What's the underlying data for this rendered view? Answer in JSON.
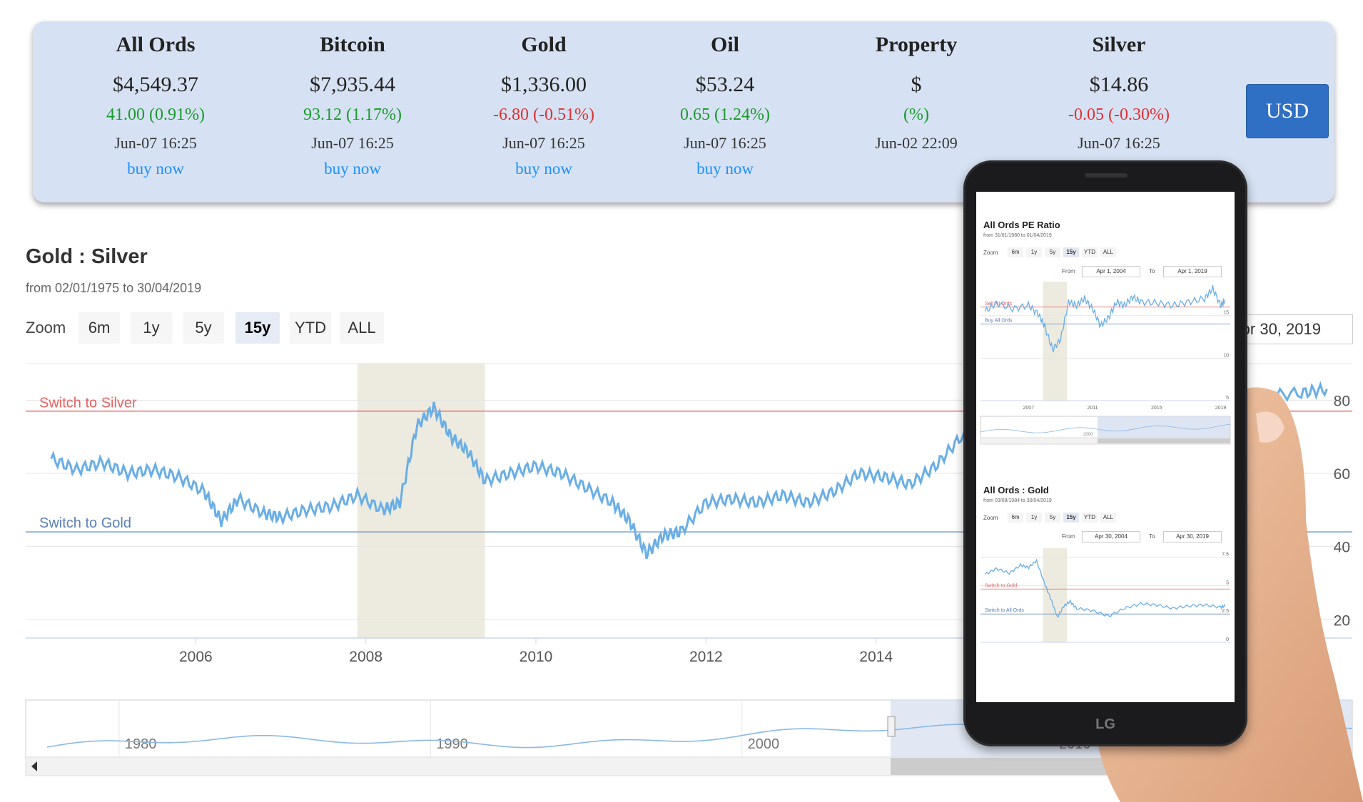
{
  "ticker": {
    "items": [
      {
        "name": "All Ords",
        "price": "$4,549.37",
        "change": "41.00 (0.91%)",
        "trend": "pos",
        "time": "Jun-07 16:25",
        "buy": "buy now"
      },
      {
        "name": "Bitcoin",
        "price": "$7,935.44",
        "change": "93.12 (1.17%)",
        "trend": "pos",
        "time": "Jun-07 16:25",
        "buy": "buy now"
      },
      {
        "name": "Gold",
        "price": "$1,336.00",
        "change": "-6.80 (-0.51%)",
        "trend": "neg",
        "time": "Jun-07 16:25",
        "buy": "buy now"
      },
      {
        "name": "Oil",
        "price": "$53.24",
        "change": "0.65 (1.24%)",
        "trend": "pos",
        "time": "Jun-07 16:25",
        "buy": "buy now"
      },
      {
        "name": "Property",
        "price": "$",
        "change": "(%)",
        "trend": "neu",
        "time": "Jun-02 22:09",
        "buy": ""
      },
      {
        "name": "Silver",
        "price": "$14.86",
        "change": "-0.05 (-0.30%)",
        "trend": "neg",
        "time": "Jun-07 16:25",
        "buy": "buy now"
      }
    ],
    "currency_button": "USD"
  },
  "main_chart": {
    "title": "Gold : Silver",
    "subtitle": "from 02/01/1975 to 30/04/2019",
    "zoom_label": "Zoom",
    "zoom_options": [
      "6m",
      "1y",
      "5y",
      "15y",
      "YTD",
      "ALL"
    ],
    "zoom_active": "15y",
    "to_date": "Apr 30, 2019",
    "switch_silver_label": "Switch to Silver",
    "switch_gold_label": "Switch to Gold",
    "line_color": "#6aaee6",
    "silver_line_color": "#e86060",
    "gold_line_color": "#7a9cc8"
  },
  "chart_data": [
    {
      "type": "line",
      "title": "Gold : Silver",
      "x_ticks": [
        "2006",
        "2008",
        "2010",
        "2012",
        "2014"
      ],
      "y_ticks": [
        "20",
        "40",
        "60",
        "80"
      ],
      "ylim": [
        20,
        90
      ],
      "thresholds": {
        "switch_to_silver": 77,
        "switch_to_gold": 44
      },
      "recession_band": {
        "from": 2007.9,
        "to": 2009.4
      },
      "series": [
        {
          "x": [
            2004.3,
            2004.6,
            2004.9,
            2005.2,
            2005.5,
            2005.8,
            2006.1,
            2006.3,
            2006.5,
            2006.8,
            2007.0,
            2007.3,
            2007.6,
            2007.9,
            2008.2,
            2008.4,
            2008.6,
            2008.8,
            2009.0,
            2009.2,
            2009.4,
            2009.7,
            2010.0,
            2010.3,
            2010.6,
            2010.9,
            2011.1,
            2011.3,
            2011.5,
            2011.7,
            2012.0,
            2012.3,
            2012.6,
            2012.9,
            2013.2,
            2013.5,
            2013.8,
            2014.1,
            2014.4,
            2014.7,
            2015.0,
            2015.5,
            2016.0,
            2016.5,
            2017.0,
            2017.5,
            2018.0,
            2018.5,
            2019.0,
            2019.3
          ],
          "y": [
            64,
            61,
            63,
            60,
            61,
            59,
            55,
            47,
            53,
            49,
            48,
            50,
            51,
            54,
            50,
            52,
            73,
            78,
            70,
            66,
            58,
            60,
            62,
            60,
            56,
            52,
            47,
            38,
            43,
            44,
            52,
            53,
            52,
            54,
            52,
            55,
            60,
            59,
            57,
            62,
            70,
            74,
            78,
            74,
            71,
            76,
            79,
            81,
            82,
            83
          ]
        }
      ]
    },
    {
      "type": "line",
      "title": "All Ords PE Ratio",
      "subtitle": "from 31/01/1980 to 01/04/2019",
      "x_ticks": [
        "2007",
        "2011",
        "2015",
        "2019"
      ],
      "y_ticks": [
        "5",
        "10",
        "15"
      ],
      "thresholds": {
        "sell": 16,
        "buy": 14
      },
      "series": [
        {
          "x": [
            2004.3,
            2005.0,
            2006.0,
            2007.0,
            2007.6,
            2008.0,
            2008.5,
            2009.0,
            2009.5,
            2010.0,
            2010.5,
            2011.0,
            2011.5,
            2012.0,
            2012.5,
            2013.0,
            2013.5,
            2014.0,
            2015.0,
            2016.0,
            2017.0,
            2018.0,
            2018.5,
            2019.0,
            2019.3
          ],
          "y": [
            15.5,
            16.5,
            15.8,
            16.2,
            15.2,
            13.8,
            11.0,
            12.2,
            16.6,
            16.2,
            17.0,
            15.8,
            13.8,
            14.8,
            16.6,
            16.2,
            17.2,
            16.6,
            16.5,
            16.2,
            16.6,
            17.0,
            18.2,
            16.2,
            16.8
          ]
        }
      ]
    },
    {
      "type": "line",
      "title": "All Ords : Gold",
      "subtitle": "from 03/08/1984 to 30/04/2019",
      "x_ticks": [],
      "y_ticks": [
        "0",
        "2.5",
        "5",
        "7.5"
      ],
      "thresholds": {
        "switch_to_gold": 4.7,
        "switch_to_all_ords": 2.5
      },
      "series": [
        {
          "x": [
            2004.3,
            2005.0,
            2005.8,
            2006.5,
            2007.0,
            2007.5,
            2008.0,
            2008.4,
            2008.8,
            2009.2,
            2009.6,
            2010.0,
            2011.0,
            2012.0,
            2013.0,
            2014.0,
            2015.0,
            2016.0,
            2017.0,
            2018.0,
            2019.0,
            2019.3
          ],
          "y": [
            6.0,
            6.5,
            6.1,
            6.8,
            6.6,
            7.2,
            5.2,
            3.8,
            2.2,
            3.2,
            3.6,
            3.0,
            2.8,
            2.3,
            3.0,
            3.4,
            3.3,
            3.0,
            3.2,
            3.3,
            3.1,
            3.2
          ]
        }
      ]
    }
  ],
  "navigator": {
    "x_ticks": [
      "1980",
      "1990",
      "2000",
      "2010"
    ]
  },
  "phone": {
    "brand": "LG",
    "chart1": {
      "title": "All Ords PE Ratio",
      "subtitle": "from 31/01/1980 to 01/04/2019",
      "zoom_label": "Zoom",
      "zoom_options": [
        "6m",
        "1y",
        "5y",
        "15y",
        "YTD",
        "ALL"
      ],
      "zoom_active": "15y",
      "from_label": "From",
      "from_value": "Apr 1, 2004",
      "to_label": "To",
      "to_value": "Apr 1, 2019",
      "sell_label": "Sell All Ords",
      "buy_label": "Buy All Ords",
      "navigator_tick": "2000"
    },
    "chart2": {
      "title": "All Ords : Gold",
      "subtitle": "from 03/08/1984 to 30/04/2019",
      "zoom_label": "Zoom",
      "zoom_options": [
        "6m",
        "1y",
        "5y",
        "15y",
        "YTD",
        "ALL"
      ],
      "zoom_active": "15y",
      "from_label": "From",
      "from_value": "Apr 30, 2004",
      "to_label": "To",
      "to_value": "Apr 30, 2019",
      "gold_label": "Switch to Gold",
      "allords_label": "Switch to All Ords"
    }
  }
}
